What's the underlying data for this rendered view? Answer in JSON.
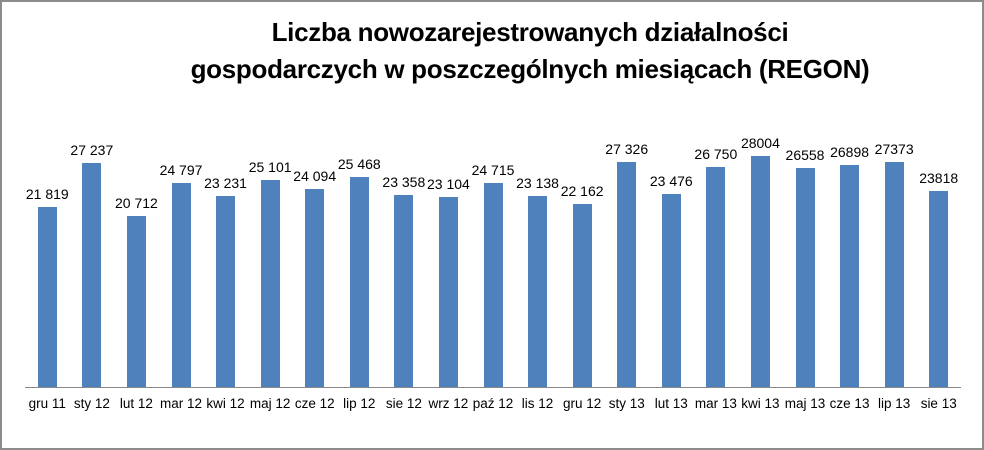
{
  "chart_data": {
    "type": "bar",
    "title": "Liczba nowozarejestrowanych działalności gospodarczych w poszczególnych miesiącach (REGON)",
    "title_line1": "Liczba nowozarejestrowanych działalności",
    "title_line2": "gospodarczych w poszczególnych miesiącach (REGON)",
    "categories": [
      "gru 11",
      "sty 12",
      "lut 12",
      "mar 12",
      "kwi 12",
      "maj 12",
      "cze 12",
      "lip 12",
      "sie 12",
      "wrz 12",
      "paź 12",
      "lis 12",
      "gru 12",
      "sty 13",
      "lut 13",
      "mar 13",
      "kwi 13",
      "maj 13",
      "cze 13",
      "lip 13",
      "sie 13"
    ],
    "values": [
      21819,
      27237,
      20712,
      24797,
      23231,
      25101,
      24094,
      25468,
      23358,
      23104,
      24715,
      23138,
      22162,
      27326,
      23476,
      26750,
      28004,
      26558,
      26898,
      27373,
      23818
    ],
    "value_labels": [
      "21 819",
      "27 237",
      "20 712",
      "24 797",
      "23 231",
      "25 101",
      "24 094",
      "25 468",
      "23 358",
      "23 104",
      "24 715",
      "23 138",
      "22 162",
      "27 326",
      "23 476",
      "26 750",
      "28004",
      "26558",
      "26898",
      "27373",
      "23818"
    ],
    "xlabel": "",
    "ylabel": "",
    "ylim": [
      0,
      28004
    ],
    "grid": "off",
    "legend": "none",
    "bar_color": "#4F81BD",
    "axis_line_color": "#898989",
    "text_color": "#000000"
  },
  "frame": {
    "border_color": "#8C8C8C",
    "background_color": "#FFFFFF"
  }
}
